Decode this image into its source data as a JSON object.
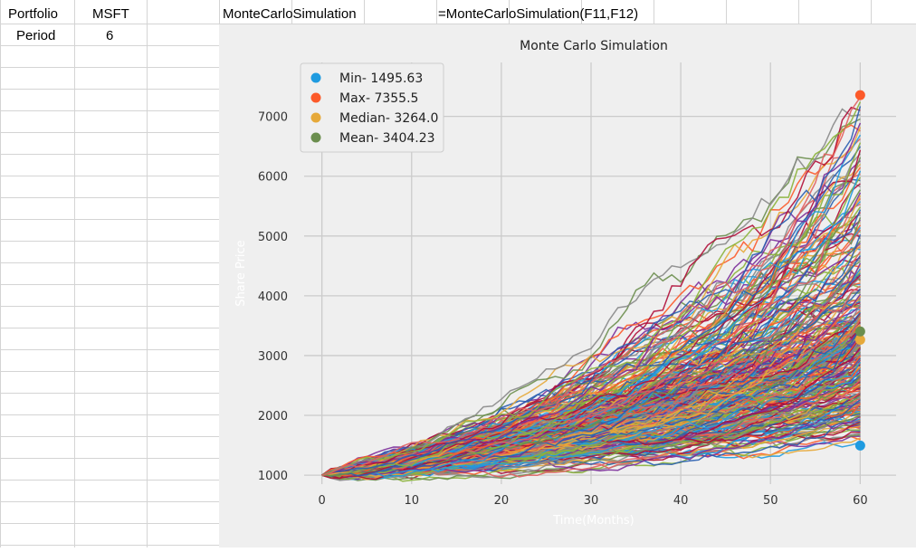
{
  "spreadsheet": {
    "cells": [
      {
        "id": "a1",
        "text": "Portfolio"
      },
      {
        "id": "b1",
        "text": "MSFT"
      },
      {
        "id": "d1",
        "text": "MonteCarloSimulation"
      },
      {
        "id": "g1",
        "text": "=MonteCarloSimulation(F11,F12)"
      },
      {
        "id": "a2",
        "text": "Period"
      },
      {
        "id": "b2",
        "text": "6"
      }
    ]
  },
  "chart_data": {
    "type": "line",
    "title": "Monte Carlo Simulation",
    "xlabel": "Time(Months)",
    "ylabel": "Share Price",
    "xlim": [
      -4,
      64
    ],
    "ylim": [
      850,
      7600
    ],
    "x_ticks": [
      0,
      10,
      20,
      30,
      40,
      50,
      60
    ],
    "y_ticks": [
      1000,
      2000,
      3000,
      4000,
      5000,
      6000,
      7000
    ],
    "grid": true,
    "legend_position": "top-left",
    "start_value": 1000,
    "months": 60,
    "simulated_paths_count": 300,
    "series_colors": [
      "#1f9be0",
      "#fc5a2a",
      "#e6a93a",
      "#7b2e9a",
      "#6b8e4e",
      "#888888",
      "#b0103a",
      "#2a5fb0",
      "#8bb23a",
      "#e05f5f"
    ],
    "markers": [
      {
        "label": "Min- 1495.63",
        "x": 60,
        "y": 1495.63,
        "color": "#1f9be0"
      },
      {
        "label": "Max- 7355.5",
        "x": 60,
        "y": 7355.5,
        "color": "#fc5a2a"
      },
      {
        "label": "Median- 3264.0",
        "x": 60,
        "y": 3264.0,
        "color": "#e6a93a"
      },
      {
        "label": "Mean- 3404.23",
        "x": 60,
        "y": 3404.23,
        "color": "#6b8e4e"
      }
    ]
  }
}
